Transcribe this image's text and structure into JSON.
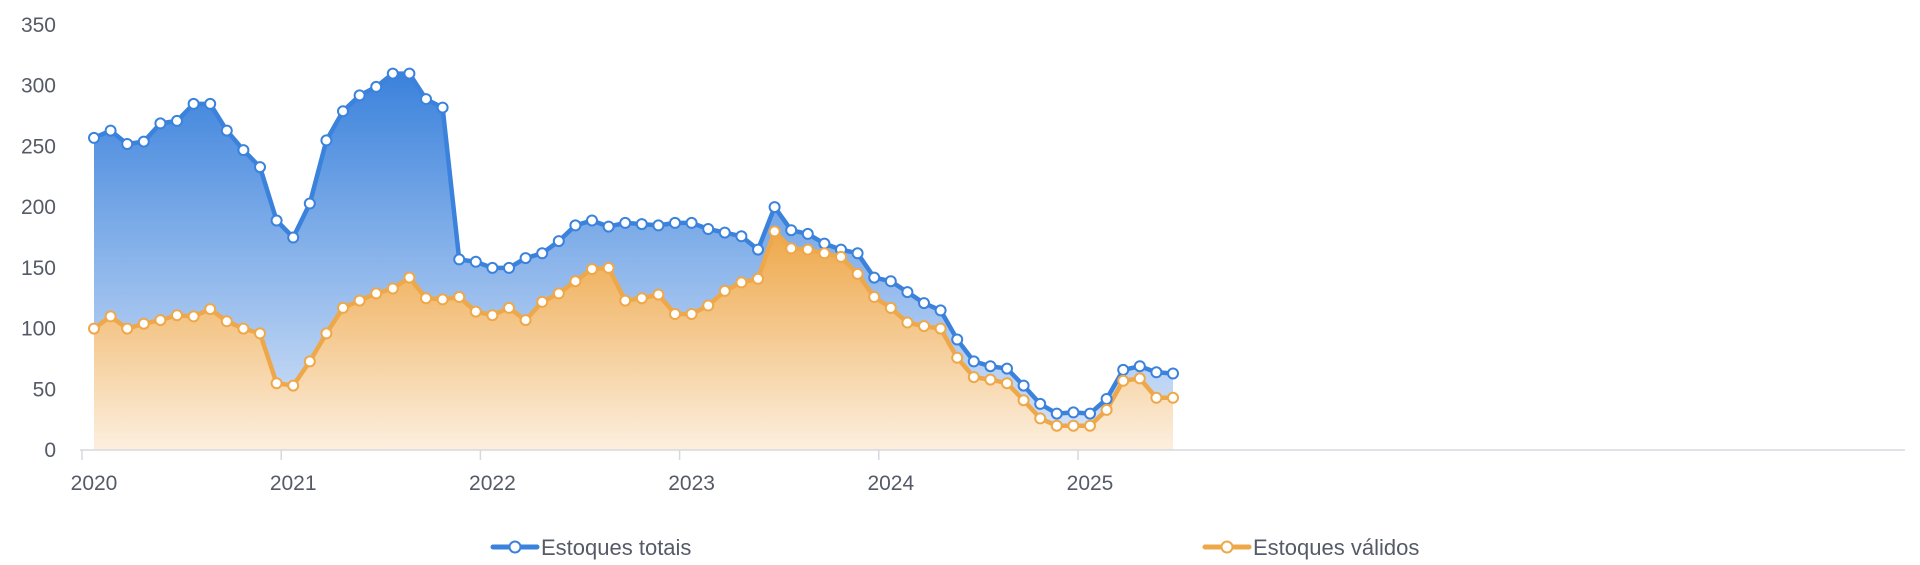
{
  "chart_data": {
    "type": "area",
    "title": "",
    "xlabel": "",
    "ylabel": "",
    "ylim": [
      0,
      350
    ],
    "yticks": [
      "0",
      "50",
      "100",
      "150",
      "200",
      "250",
      "300",
      "350"
    ],
    "xticks": [
      "2020",
      "2021",
      "2022",
      "2023",
      "2024",
      "2025"
    ],
    "grid": false,
    "legend_position": "bottom",
    "x_start": "2020-01",
    "x_interval": "month",
    "series": [
      {
        "name": "Estoques totais",
        "color": "#3b82dc",
        "values": [
          257,
          263,
          252,
          254,
          269,
          271,
          285,
          285,
          263,
          247,
          233,
          189,
          175,
          203,
          255,
          279,
          292,
          299,
          310,
          310,
          289,
          282,
          157,
          155,
          150,
          150,
          158,
          162,
          172,
          185,
          189,
          184,
          187,
          186,
          185,
          187,
          187,
          182,
          179,
          176,
          165,
          200,
          181,
          178,
          170,
          165,
          162,
          142,
          139,
          130,
          121,
          115,
          91,
          73,
          69,
          67,
          53,
          38,
          30,
          31,
          30,
          42,
          66,
          69,
          64,
          63
        ]
      },
      {
        "name": "Estoques válidos",
        "color": "#eea84a",
        "values": [
          100,
          110,
          100,
          104,
          107,
          111,
          110,
          116,
          106,
          100,
          96,
          55,
          53,
          73,
          96,
          117,
          123,
          129,
          133,
          142,
          125,
          124,
          126,
          114,
          111,
          117,
          107,
          122,
          129,
          139,
          149,
          150,
          123,
          125,
          128,
          112,
          112,
          119,
          131,
          138,
          141,
          180,
          166,
          165,
          162,
          159,
          145,
          126,
          117,
          105,
          102,
          100,
          76,
          60,
          58,
          55,
          41,
          26,
          20,
          20,
          20,
          33,
          57,
          59,
          43,
          43
        ]
      }
    ]
  }
}
